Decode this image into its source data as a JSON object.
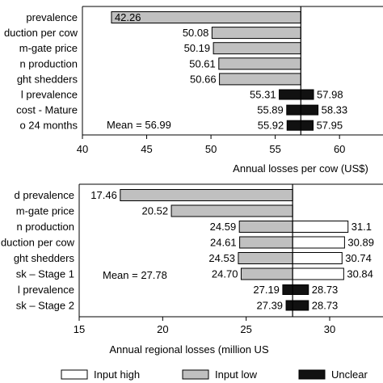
{
  "chart_data": [
    {
      "type": "bar",
      "subtype": "tornado",
      "title": "",
      "xlabel": "Annual losses per cow (US$)",
      "ylabel": "",
      "xlim": [
        40,
        62
      ],
      "xticks": [
        40,
        45,
        50,
        55,
        60
      ],
      "mean": 56.99,
      "mean_label": "Mean = 56.99",
      "categories": [
        "prevalence",
        "duction per cow",
        "m-gate price",
        "n production",
        "ght shedders",
        "l prevalence",
        "cost - Mature",
        "o 24 months"
      ],
      "series": [
        {
          "name": "Input low",
          "values": [
            42.26,
            50.08,
            50.19,
            50.61,
            50.66,
            null,
            null,
            null
          ]
        },
        {
          "name": "Input high",
          "values": [
            null,
            null,
            null,
            null,
            null,
            null,
            null,
            null
          ]
        },
        {
          "name": "Unclear",
          "low": [
            null,
            null,
            null,
            null,
            null,
            55.31,
            55.89,
            55.92
          ],
          "high": [
            null,
            null,
            null,
            null,
            null,
            57.98,
            58.33,
            57.95
          ]
        }
      ],
      "value_labels_left": [
        "42.26",
        "50.08",
        "50.19",
        "50.61",
        "50.66",
        "55.31",
        "55.89",
        "55.92"
      ],
      "value_labels_right": [
        "",
        "",
        "",
        "",
        "",
        "57.98",
        "58.33",
        "57.95"
      ]
    },
    {
      "type": "bar",
      "subtype": "tornado",
      "title": "",
      "xlabel": "Annual regional losses (million US",
      "ylabel": "",
      "xlim": [
        15,
        33
      ],
      "xticks": [
        15,
        20,
        25,
        30
      ],
      "mean": 27.78,
      "mean_label": "Mean = 27.78",
      "categories": [
        "d prevalence",
        "m-gate price",
        "n production",
        "duction per cow",
        "ght shedders",
        "sk – Stage 1",
        "l prevalence",
        "sk – Stage 2"
      ],
      "series": [
        {
          "name": "Input low",
          "values": [
            17.46,
            20.52,
            24.59,
            24.61,
            24.53,
            24.7,
            null,
            null
          ]
        },
        {
          "name": "Input high",
          "values": [
            null,
            null,
            31.1,
            30.89,
            30.74,
            30.84,
            null,
            null
          ]
        },
        {
          "name": "Unclear",
          "low": [
            null,
            null,
            null,
            null,
            null,
            null,
            27.19,
            27.39
          ],
          "high": [
            null,
            null,
            null,
            null,
            null,
            null,
            28.73,
            28.73
          ]
        }
      ],
      "value_labels_left": [
        "17.46",
        "20.52",
        "24.59",
        "24.61",
        "24.53",
        "24.70",
        "27.19",
        "27.39"
      ],
      "value_labels_right": [
        "",
        "",
        "31.1",
        "30.89",
        "30.74",
        "30.84",
        "28.73",
        "28.73"
      ]
    }
  ],
  "legend": [
    {
      "label": "Input high",
      "color": "#ffffff"
    },
    {
      "label": "Input low",
      "color": "#c0c0c0"
    },
    {
      "label": "Unclear",
      "color": "#111111"
    }
  ]
}
